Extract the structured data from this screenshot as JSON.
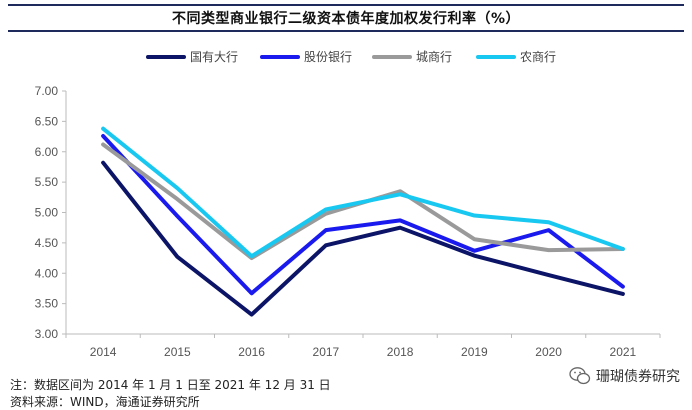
{
  "title": "不同类型商业银行二级资本债年度加权发行利率（%）",
  "chart_data": {
    "type": "line",
    "title": "不同类型商业银行二级资本债年度加权发行利率（%）",
    "categories": [
      "2014",
      "2015",
      "2016",
      "2017",
      "2018",
      "2019",
      "2020",
      "2021"
    ],
    "ylim": [
      3.0,
      7.0
    ],
    "yticks": [
      "3.00",
      "3.50",
      "4.00",
      "4.50",
      "5.00",
      "5.50",
      "6.00",
      "6.50",
      "7.00"
    ],
    "legend_position": "top",
    "grid": false,
    "series": [
      {
        "name": "国有大行",
        "color": "#0b1466",
        "values": [
          5.82,
          4.27,
          3.32,
          4.46,
          4.75,
          4.29,
          3.97,
          3.66
        ]
      },
      {
        "name": "股份银行",
        "color": "#1a1aee",
        "values": [
          6.26,
          4.94,
          3.67,
          4.71,
          4.87,
          4.37,
          4.71,
          3.78
        ]
      },
      {
        "name": "城商行",
        "color": "#9a9a9a",
        "values": [
          6.12,
          5.22,
          4.25,
          4.98,
          5.35,
          4.56,
          4.38,
          4.4
        ]
      },
      {
        "name": "农商行",
        "color": "#19c8f0",
        "values": [
          6.38,
          5.4,
          4.28,
          5.05,
          5.3,
          4.95,
          4.84,
          4.4
        ]
      }
    ]
  },
  "footnote": {
    "period": "注：数据区间为 2014 年 1 月 1 日至 2021 年 12 月 31 日",
    "source": "资料来源：WIND，海通证券研究所"
  },
  "brand": {
    "name": "珊瑚债券研究",
    "icon": "wechat-icon"
  }
}
